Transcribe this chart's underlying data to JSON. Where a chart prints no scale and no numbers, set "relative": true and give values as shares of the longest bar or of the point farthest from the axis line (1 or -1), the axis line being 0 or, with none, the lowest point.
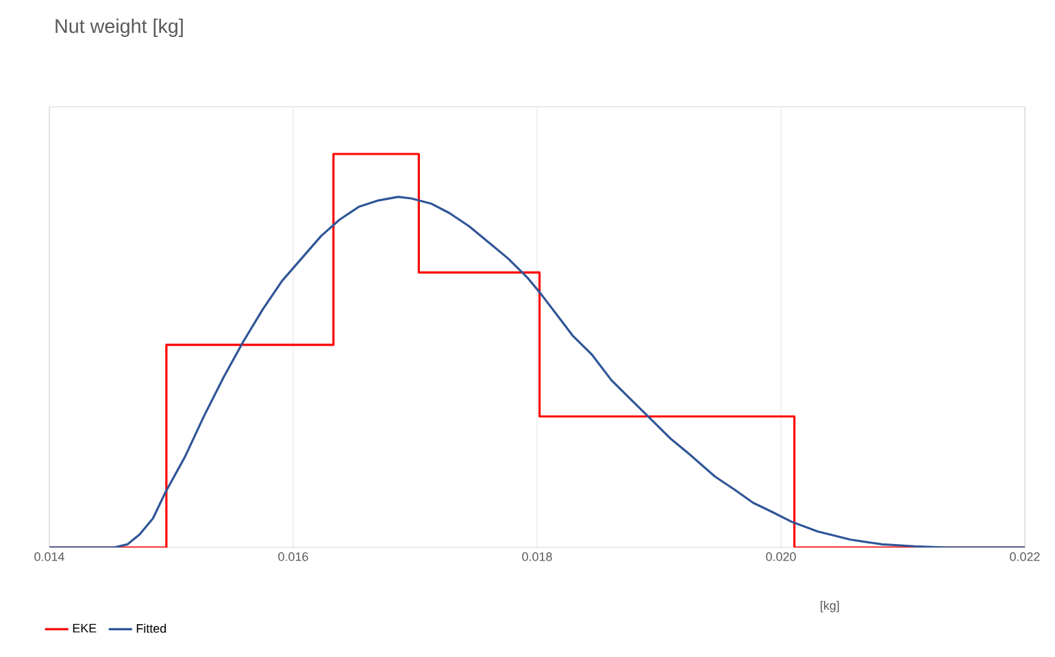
{
  "chart_data": {
    "type": "line",
    "title": "Nut weight [kg]",
    "xlabel": "[kg]",
    "relative": true,
    "xlim": [
      0.014,
      0.022
    ],
    "xticks": [
      {
        "value": 0.014,
        "label": "0.014"
      },
      {
        "value": 0.016,
        "label": "0.016"
      },
      {
        "value": 0.018,
        "label": "0.018"
      },
      {
        "value": 0.02,
        "label": "0.020"
      },
      {
        "value": 0.022,
        "label": "0.022"
      }
    ],
    "grid": "x",
    "legend": "bottom left",
    "marker": "none",
    "line_style": "solid",
    "series": [
      {
        "name": "EKE",
        "type": "step",
        "color": "#ff0000",
        "x": [
          0.014,
          0.01496,
          0.01633,
          0.01703,
          0.01802,
          0.02011,
          0.022
        ],
        "values": [
          0,
          0.515,
          1,
          0.699,
          0.333,
          0,
          0
        ]
      },
      {
        "name": "Fitted",
        "color": "#2f5597",
        "x": [
          0.014,
          0.01453,
          0.01464,
          0.01474,
          0.01485,
          0.01495,
          0.01511,
          0.01527,
          0.01543,
          0.01559,
          0.01575,
          0.01591,
          0.01607,
          0.01623,
          0.01638,
          0.01654,
          0.0167,
          0.01686,
          0.01697,
          0.01713,
          0.01728,
          0.01744,
          0.0176,
          0.01776,
          0.01792,
          0.01803,
          0.01819,
          0.01829,
          0.01845,
          0.01861,
          0.01877,
          0.01893,
          0.01909,
          0.01925,
          0.01946,
          0.01962,
          0.01977,
          0.01993,
          0.02009,
          0.0203,
          0.02057,
          0.02083,
          0.0211,
          0.02136,
          0.022
        ],
        "values": [
          0,
          0,
          0.008,
          0.033,
          0.074,
          0.139,
          0.229,
          0.335,
          0.433,
          0.523,
          0.605,
          0.678,
          0.735,
          0.792,
          0.833,
          0.866,
          0.882,
          0.891,
          0.887,
          0.874,
          0.85,
          0.817,
          0.776,
          0.735,
          0.686,
          0.645,
          0.58,
          0.539,
          0.49,
          0.425,
          0.376,
          0.327,
          0.278,
          0.237,
          0.18,
          0.147,
          0.114,
          0.09,
          0.065,
          0.041,
          0.02,
          0.008,
          0.003,
          0,
          0
        ]
      }
    ]
  }
}
